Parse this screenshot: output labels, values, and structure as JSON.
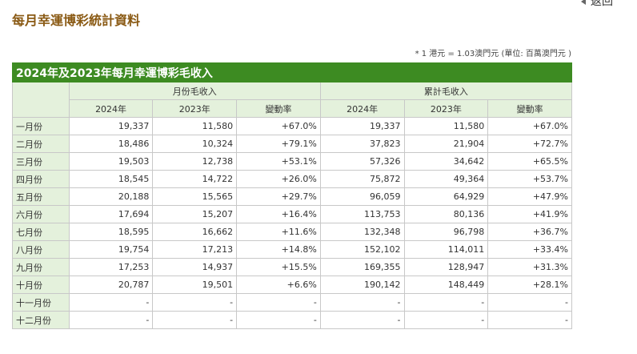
{
  "header": {
    "title": "每月幸運博彩統計資料",
    "back": "返回",
    "note": "* 1 港元 = 1.03澳門元 (單位: 百萬澳門元 )"
  },
  "table": {
    "caption": "2024年及2023年每月幸運博彩毛收入",
    "groups": [
      "月份毛收入",
      "累計毛收入"
    ],
    "columns": [
      "2024年",
      "2023年",
      "變動率",
      "2024年",
      "2023年",
      "變動率"
    ],
    "rows": [
      [
        "一月份",
        "19,337",
        "11,580",
        "+67.0%",
        "19,337",
        "11,580",
        "+67.0%"
      ],
      [
        "二月份",
        "18,486",
        "10,324",
        "+79.1%",
        "37,823",
        "21,904",
        "+72.7%"
      ],
      [
        "三月份",
        "19,503",
        "12,738",
        "+53.1%",
        "57,326",
        "34,642",
        "+65.5%"
      ],
      [
        "四月份",
        "18,545",
        "14,722",
        "+26.0%",
        "75,872",
        "49,364",
        "+53.7%"
      ],
      [
        "五月份",
        "20,188",
        "15,565",
        "+29.7%",
        "96,059",
        "64,929",
        "+47.9%"
      ],
      [
        "六月份",
        "17,694",
        "15,207",
        "+16.4%",
        "113,753",
        "80,136",
        "+41.9%"
      ],
      [
        "七月份",
        "18,595",
        "16,662",
        "+11.6%",
        "132,348",
        "96,798",
        "+36.7%"
      ],
      [
        "八月份",
        "19,754",
        "17,213",
        "+14.8%",
        "152,102",
        "114,011",
        "+33.4%"
      ],
      [
        "九月份",
        "17,253",
        "14,937",
        "+15.5%",
        "169,355",
        "128,947",
        "+31.3%"
      ],
      [
        "十月份",
        "20,787",
        "19,501",
        "+6.6%",
        "190,142",
        "148,449",
        "+28.1%"
      ],
      [
        "十一月份",
        "-",
        "-",
        "-",
        "-",
        "-",
        "-"
      ],
      [
        "十二月份",
        "-",
        "-",
        "-",
        "-",
        "-",
        "-"
      ]
    ]
  }
}
